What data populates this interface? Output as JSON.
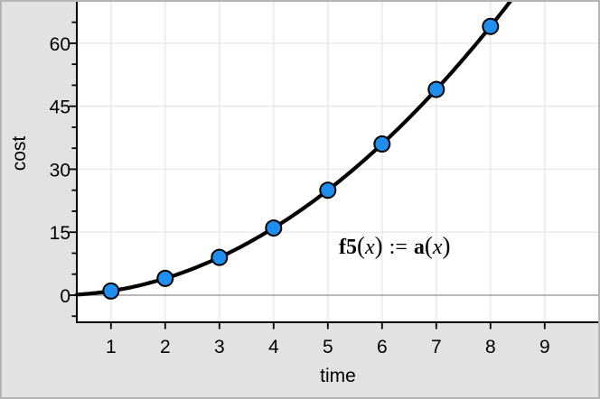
{
  "window": {
    "background_color": "#e2e2e2",
    "plot_background_color": "#ffffff",
    "frame_color": "#b4b4b4"
  },
  "chart_data": {
    "type": "scatter",
    "title": "",
    "xlabel": "time",
    "ylabel": "cost",
    "x": [
      1,
      2,
      3,
      4,
      5,
      6,
      7,
      8
    ],
    "y": [
      1,
      4,
      9,
      16,
      25,
      36,
      49,
      64
    ],
    "curve": {
      "expression": "x^2",
      "style": "thick solid black"
    },
    "xticks": [
      1,
      2,
      3,
      4,
      5,
      6,
      7,
      8,
      9
    ],
    "ytick_labels": [
      0,
      15,
      30,
      45,
      60
    ],
    "ytick_minor_step": 5,
    "xlim": [
      0.37,
      10.02
    ],
    "ylim": [
      -6.45,
      70.3
    ],
    "grid": true,
    "legend": "none",
    "colors": {
      "point_fill": "#1e8fef",
      "point_stroke": "#000000",
      "curve": "#000000",
      "grid": "#e8e8e8",
      "zero_line": "#8f8f8f",
      "axis": "#000000"
    },
    "point_radius": 8.5,
    "curve_width": 4.2
  },
  "annotation": {
    "name": "f5",
    "open_paren": "(",
    "arg": "x",
    "close_paren": ")",
    "assign": ":=",
    "rhs_name": "a"
  }
}
